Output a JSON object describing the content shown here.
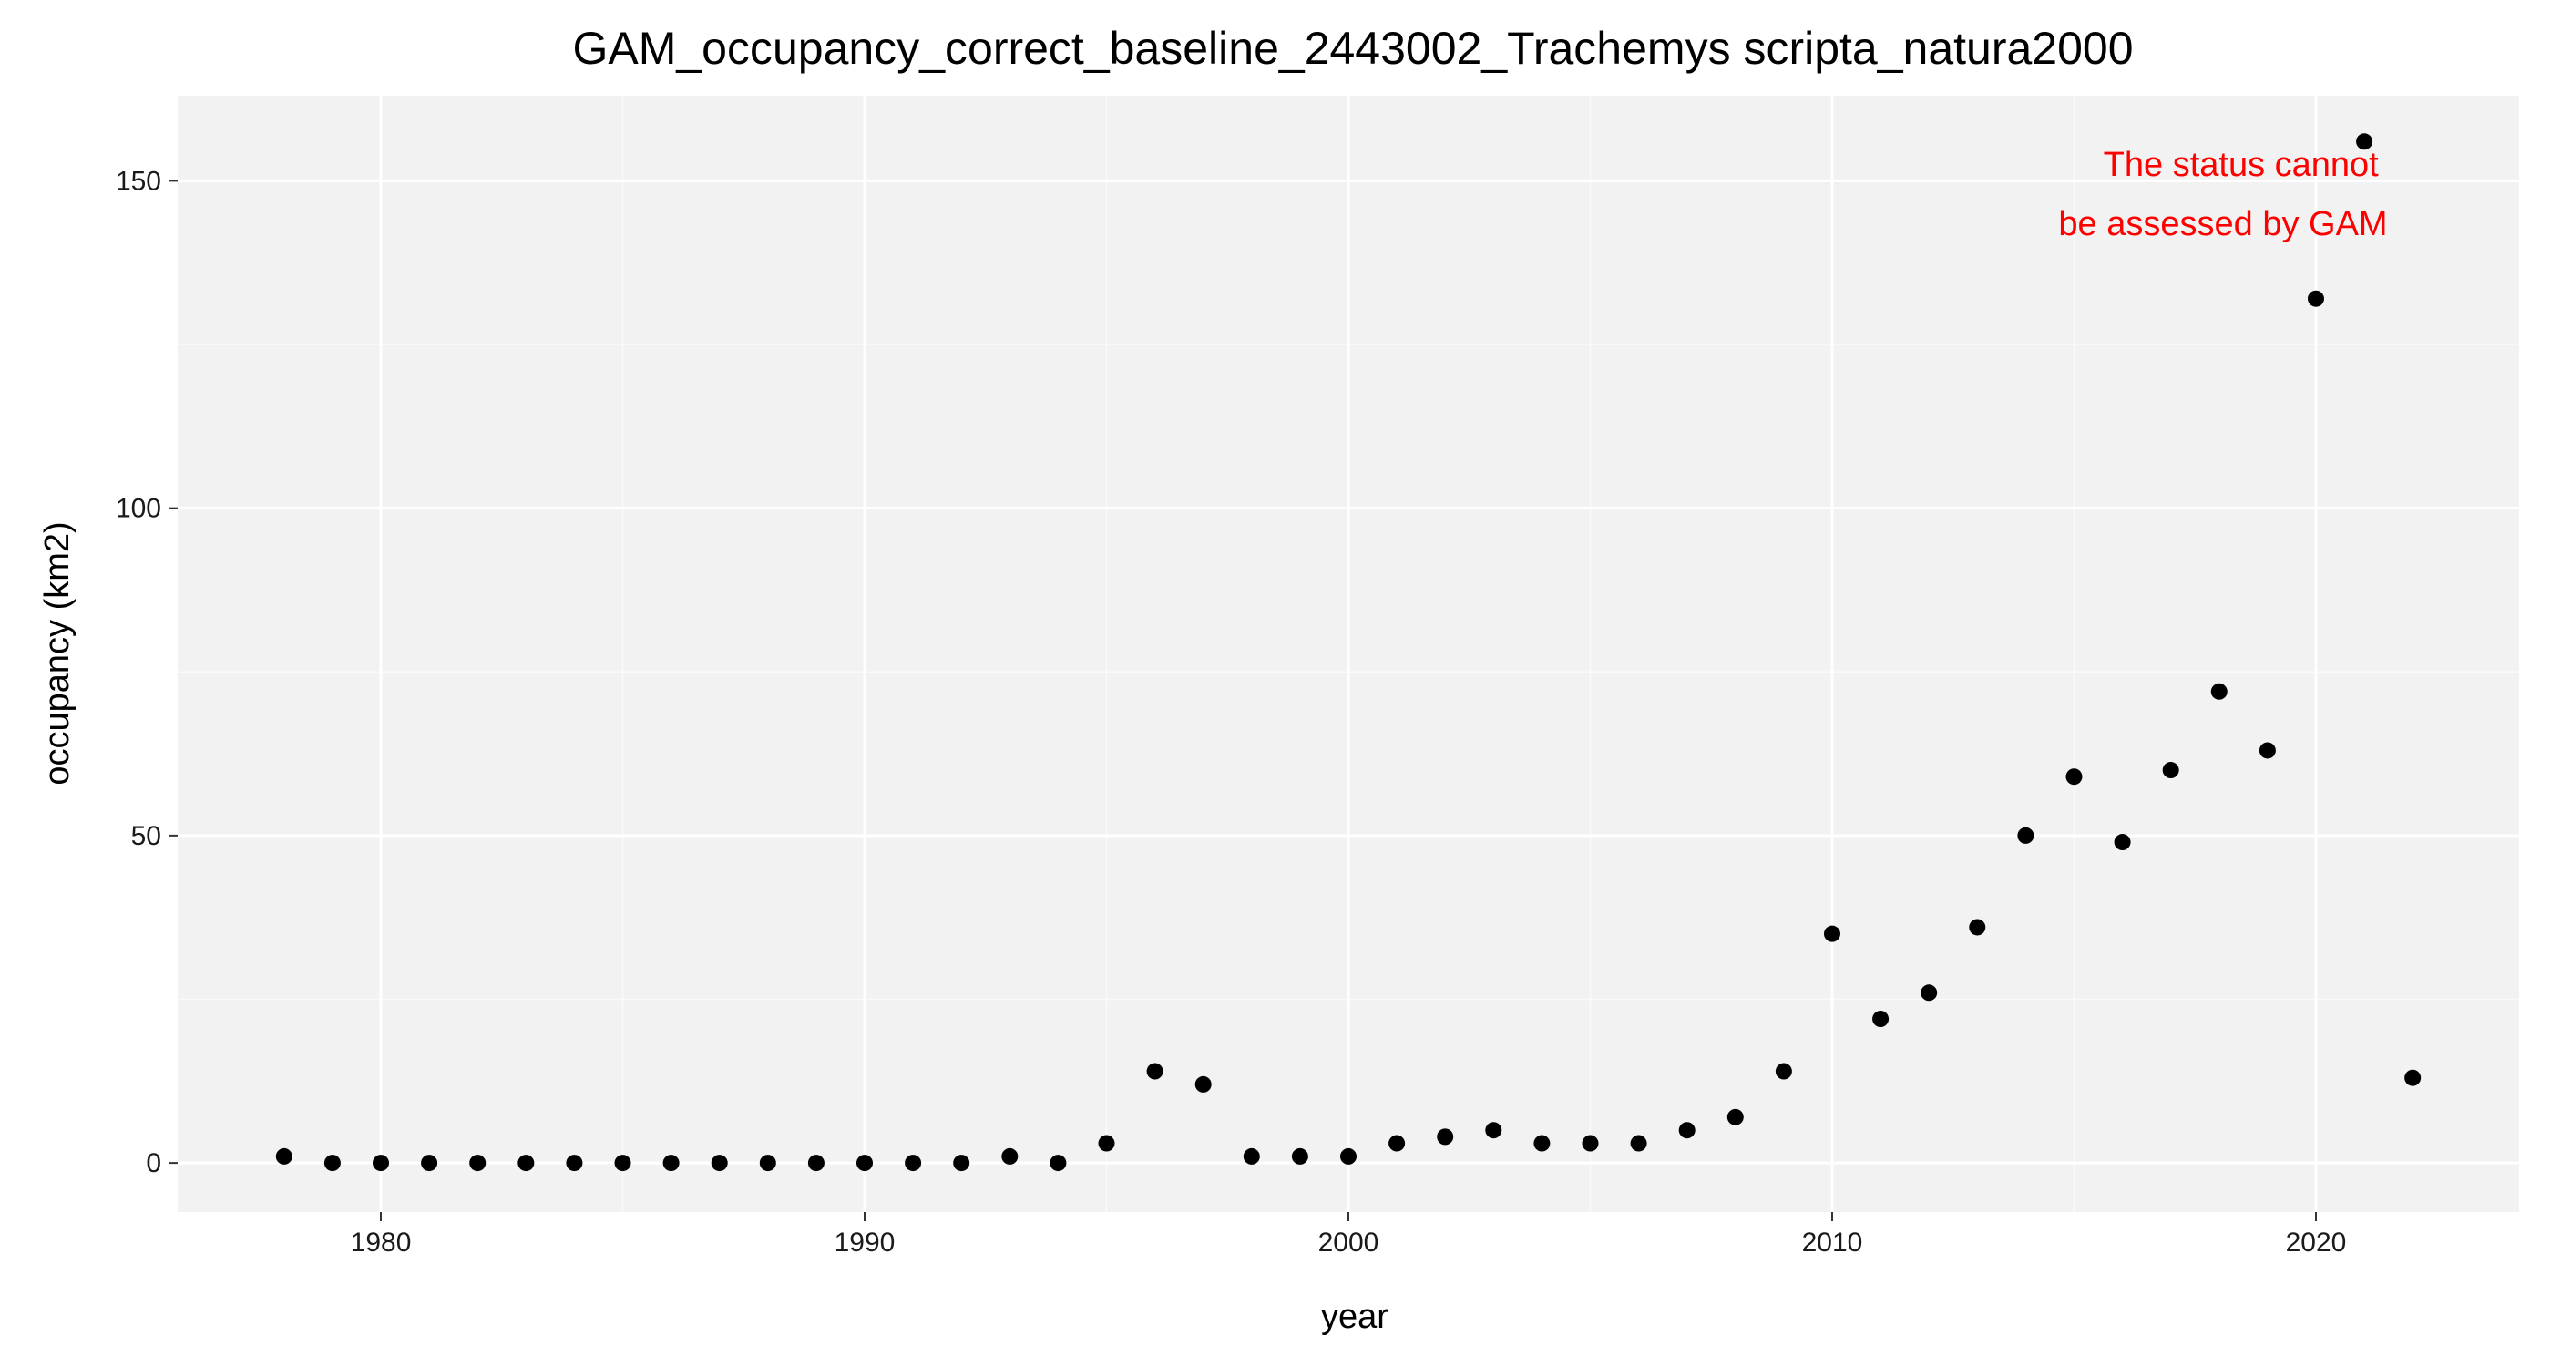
{
  "chart_data": {
    "type": "scatter",
    "title": "GAM_occupancy_correct_baseline_2443002_Trachemys scripta_natura2000",
    "xlabel": "year",
    "ylabel": "occupancy (km2)",
    "xlim": [
      1975.8,
      2024.2
    ],
    "ylim": [
      -7.5,
      163
    ],
    "x_ticks": [
      1980,
      1990,
      2000,
      2010,
      2020
    ],
    "x_tick_labels": [
      "1980",
      "1990",
      "2000",
      "2010",
      "2020"
    ],
    "y_ticks": [
      0,
      50,
      100,
      150
    ],
    "y_tick_labels": [
      "0",
      "50",
      "100",
      "150"
    ],
    "grid": true,
    "legend": "none",
    "colors": {
      "panel_background": "#f2f2f2",
      "grid_major": "#ffffff",
      "grid_minor": "#fafafa",
      "point": "#000000",
      "annotation": "#ff0000"
    },
    "annotation": {
      "lines": [
        "The status cannot",
        "be assessed by GAM"
      ]
    },
    "series": [
      {
        "x": [
          1978,
          1979,
          1980,
          1981,
          1982,
          1983,
          1984,
          1985,
          1986,
          1987,
          1988,
          1989,
          1990,
          1991,
          1992,
          1993,
          1994,
          1995,
          1996,
          1997,
          1998,
          1999,
          2000,
          2001,
          2002,
          2003,
          2004,
          2005,
          2006,
          2007,
          2008,
          2009,
          2010,
          2011,
          2012,
          2013,
          2014,
          2015,
          2016,
          2017,
          2018,
          2019,
          2020,
          2021,
          2022
        ],
        "y": [
          1,
          0,
          0,
          0,
          0,
          0,
          0,
          0,
          0,
          0,
          0,
          0,
          0,
          0,
          0,
          1,
          0,
          3,
          14,
          12,
          1,
          1,
          1,
          3,
          4,
          5,
          3,
          3,
          3,
          5,
          7,
          14,
          35,
          22,
          26,
          36,
          50,
          59,
          49,
          60,
          72,
          63,
          132,
          156,
          13
        ]
      }
    ]
  }
}
